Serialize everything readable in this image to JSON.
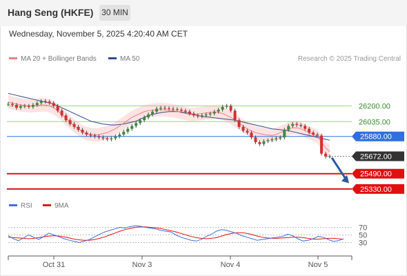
{
  "header": {
    "title": "Hang Seng (HKFE)",
    "interval": "30 MIN",
    "datetime": "Wednesday, November 5, 2025 4:20:40 AM CET"
  },
  "legend": {
    "ma20": "MA 20 + Bollinger Bands",
    "ma50": "MA 50",
    "research": "Research © 2025 Trading Central",
    "rsi": "RSI",
    "nine_ma": "9MA"
  },
  "colors": {
    "ma20": "#f08080",
    "ma50": "#2e4a8a",
    "band_fill": "#fde3e3",
    "resistance": "#9fd08a",
    "pivot": "#2f6fe0",
    "support": "#e01010",
    "current": "#333333",
    "arrow": "#2a5aa0",
    "candle_up": "#3c8a3c",
    "candle_down": "#d23030",
    "rsi": "#3a6fe0",
    "rsi_ma": "#e01010"
  },
  "chart_data": [
    {
      "type": "line",
      "title": "Hang Seng (HKFE)",
      "interval": "30 MIN",
      "x_ticks": [
        "Oct 31",
        "Nov 3",
        "Nov 4",
        "Nov 5"
      ],
      "ylim": [
        25300,
        26550
      ],
      "levels": [
        {
          "value": 26200,
          "label": "26200.00",
          "kind": "resistance"
        },
        {
          "value": 26035,
          "label": "26035.00",
          "kind": "resistance"
        },
        {
          "value": 25880,
          "label": "25880.00",
          "kind": "pivot"
        },
        {
          "value": 25672,
          "label": "25672.00",
          "kind": "current"
        },
        {
          "value": 25490,
          "label": "25490.00",
          "kind": "support"
        },
        {
          "value": 25330,
          "label": "25330.00",
          "kind": "support"
        }
      ],
      "series": [
        {
          "name": "Price",
          "values": [
            26220,
            26210,
            26180,
            26195,
            26200,
            26190,
            26210,
            26230,
            26250,
            26245,
            26230,
            26200,
            26150,
            26100,
            26050,
            26010,
            25980,
            25950,
            25920,
            25900,
            25890,
            25880,
            25870,
            25860,
            25850,
            25860,
            25880,
            25900,
            25930,
            25960,
            25990,
            26020,
            26050,
            26080,
            26110,
            26140,
            26170,
            26180,
            26175,
            26170,
            26165,
            26160,
            26150,
            26140,
            26120,
            26100,
            26090,
            26100,
            26110,
            26120,
            26140,
            26160,
            26190,
            26200,
            26150,
            26050,
            25980,
            25940,
            25920,
            25870,
            25820,
            25800,
            25830,
            25840,
            25850,
            25860,
            25870,
            25950,
            25990,
            26010,
            26000,
            25990,
            25960,
            25920,
            25900,
            25890,
            25700,
            25670,
            25672
          ]
        },
        {
          "name": "MA 20",
          "values": [
            26240,
            26230,
            26220,
            26210,
            26205,
            26200,
            26200,
            26205,
            26210,
            26210,
            26200,
            26180,
            26150,
            26110,
            26070,
            26030,
            25990,
            25960,
            25930,
            25910,
            25900,
            25895,
            25900,
            25910,
            25920,
            25940,
            25960,
            25990,
            26020,
            26050,
            26080,
            26100,
            26120,
            26140,
            26150,
            26155,
            26160,
            26160,
            26160,
            26155,
            26150,
            26140,
            26130,
            26120,
            26110,
            26110,
            26115,
            26120,
            26125,
            26130,
            26135,
            26130,
            26120,
            26100,
            26080,
            26050,
            26020,
            25990,
            25960,
            25940,
            25920,
            25910,
            25900,
            25895,
            25890,
            25900,
            25920,
            25940,
            25960,
            25970,
            25970,
            25960,
            25940,
            25920,
            25900,
            25880,
            25820,
            25760,
            25720
          ]
        },
        {
          "name": "MA 50",
          "values": [
            26330,
            26320,
            26310,
            26300,
            26290,
            26280,
            26270,
            26260,
            26250,
            26240,
            26230,
            26220,
            26200,
            26180,
            26160,
            26140,
            26120,
            26100,
            26080,
            26060,
            26040,
            26030,
            26020,
            26010,
            26005,
            26000,
            26000,
            26005,
            26010,
            26020,
            26030,
            26040,
            26060,
            26080,
            26100,
            26110,
            26120,
            26130,
            26135,
            26140,
            26140,
            26140,
            26135,
            26130,
            26120,
            26110,
            26100,
            26090,
            26085,
            26080,
            26075,
            26070,
            26065,
            26060,
            26055,
            26050,
            26040,
            26030,
            26020,
            26010,
            26000,
            25990,
            25980,
            25970,
            25960,
            25955,
            25950,
            25945,
            25940,
            25930,
            25920,
            25910,
            25900,
            25890,
            25880,
            25870,
            25860,
            25850,
            25840
          ]
        }
      ]
    },
    {
      "type": "line",
      "title": "RSI",
      "ylim": [
        0,
        100
      ],
      "y_ticks": [
        70,
        50,
        30
      ],
      "series": [
        {
          "name": "RSI",
          "values": [
            48,
            40,
            35,
            42,
            50,
            44,
            38,
            46,
            55,
            50,
            45,
            40,
            36,
            33,
            30,
            34,
            38,
            45,
            52,
            58,
            62,
            66,
            70,
            68,
            72,
            74,
            73,
            70,
            68,
            66,
            62,
            60,
            58,
            50,
            44,
            40,
            36,
            34,
            38,
            46,
            52,
            60,
            64,
            62,
            58,
            54,
            48,
            44,
            40,
            36,
            38,
            40,
            42,
            44,
            46,
            52,
            48,
            40,
            34,
            36,
            40,
            46,
            44,
            38,
            33,
            35,
            40
          ]
        },
        {
          "name": "9MA",
          "values": [
            44,
            43,
            42,
            41,
            40,
            41,
            43,
            45,
            47,
            48,
            47,
            45,
            42,
            39,
            37,
            36,
            36,
            38,
            41,
            45,
            50,
            55,
            60,
            64,
            67,
            70,
            71,
            71,
            70,
            69,
            67,
            64,
            61,
            58,
            54,
            50,
            46,
            43,
            41,
            40,
            41,
            43,
            47,
            51,
            54,
            56,
            56,
            54,
            51,
            47,
            44,
            42,
            41,
            41,
            42,
            43,
            44,
            44,
            43,
            41,
            39,
            39,
            40,
            41,
            41,
            40,
            39
          ]
        }
      ]
    }
  ]
}
